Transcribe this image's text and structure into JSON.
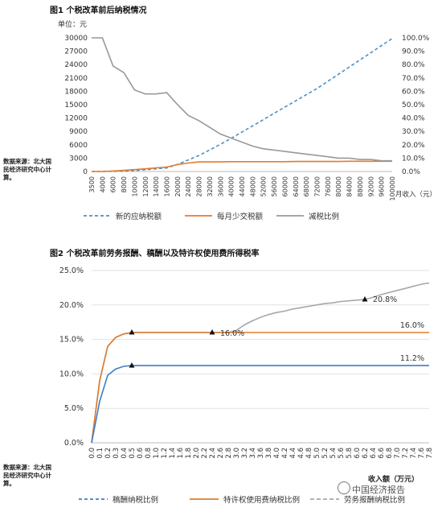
{
  "fig1": {
    "title": "图1 个税改革前后纳税情况",
    "unit": "单位：元",
    "source": "数据来源：北大国民经济研究中心计算。",
    "xlabel": "月收入（元）",
    "xticks": [
      "3500",
      "4000",
      "6000",
      "8000",
      "10000",
      "12000",
      "14000",
      "16000",
      "20000",
      "24000",
      "28000",
      "32000",
      "36000",
      "40000",
      "44000",
      "48000",
      "52000",
      "56000",
      "60000",
      "64000",
      "68000",
      "72000",
      "76000",
      "80000",
      "84000",
      "88000",
      "92000",
      "96000",
      "100000"
    ],
    "yticks_left": [
      "0",
      "3000",
      "6000",
      "9000",
      "12000",
      "15000",
      "18000",
      "21000",
      "24000",
      "27000",
      "30000"
    ],
    "yticks_right": [
      "0.0%",
      "10.0%",
      "20.0%",
      "30.0%",
      "40.0%",
      "50.0%",
      "60.0%",
      "70.0%",
      "80.0%",
      "90.0%",
      "100.0%"
    ],
    "legend": [
      "新的应纳税额",
      "每月少交税额",
      "减税比例"
    ]
  },
  "fig2": {
    "title": "图2 个税改革前劳务报酬、稿酬以及特许权使用费所得税率",
    "source": "数据来源：北大国民经济研究中心计算。",
    "xlabel": "收入额（万元）",
    "yticks": [
      "0.0%",
      "5.0%",
      "10.0%",
      "15.0%",
      "20.0%",
      "25.0%"
    ],
    "legend": [
      "稿酬纳税比例",
      "特许权使用费纳税比例",
      "劳务报酬纳税比例"
    ],
    "annotations": [
      "16.0%",
      "11.2%",
      "16.0%",
      "20.8%"
    ]
  },
  "watermark": "中国经济报告",
  "chart_data": [
    {
      "type": "line",
      "title": "图1 个税改革前后纳税情况",
      "xlabel": "月收入（元）",
      "ylabel": "单位：元",
      "ylim": [
        0,
        30000
      ],
      "y2lim": [
        0,
        1.0
      ],
      "categories": [
        3500,
        4000,
        6000,
        8000,
        10000,
        12000,
        14000,
        16000,
        20000,
        24000,
        28000,
        32000,
        36000,
        40000,
        44000,
        48000,
        52000,
        56000,
        60000,
        64000,
        68000,
        72000,
        76000,
        80000,
        84000,
        88000,
        92000,
        96000,
        100000
      ],
      "series": [
        {
          "name": "新的应纳税额",
          "axis": "left",
          "color": "#4a90c8",
          "dash": true,
          "values": [
            0,
            0,
            30,
            90,
            190,
            390,
            590,
            790,
            1590,
            2590,
            3590,
            4840,
            6090,
            7440,
            8840,
            10240,
            11640,
            13040,
            14440,
            15840,
            17240,
            18640,
            20240,
            21840,
            23440,
            25040,
            26640,
            28240,
            29840
          ]
        },
        {
          "name": "每月少交税额",
          "axis": "left",
          "color": "#e57a2e",
          "dash": false,
          "values": [
            0,
            15,
            115,
            255,
            415,
            590,
            790,
            1000,
            1550,
            1900,
            2150,
            2150,
            2150,
            2200,
            2200,
            2200,
            2200,
            2200,
            2200,
            2250,
            2250,
            2250,
            2250,
            2250,
            2300,
            2300,
            2300,
            2300,
            2300
          ]
        },
        {
          "name": "减税比例",
          "axis": "right",
          "color": "#999999",
          "dash": false,
          "values": [
            1.0,
            1.0,
            0.79,
            0.74,
            0.61,
            0.58,
            0.58,
            0.59,
            0.5,
            0.42,
            0.38,
            0.33,
            0.28,
            0.25,
            0.22,
            0.19,
            0.17,
            0.16,
            0.15,
            0.14,
            0.13,
            0.12,
            0.11,
            0.1,
            0.1,
            0.09,
            0.09,
            0.08,
            0.08
          ]
        }
      ]
    },
    {
      "type": "line",
      "title": "图2 个税改革前劳务报酬、稿酬以及特许权使用费所得税率",
      "xlabel": "收入额（万元）",
      "ylim": [
        0,
        0.25
      ],
      "categories": [
        0.0,
        0.1,
        0.2,
        0.3,
        0.4,
        0.5,
        0.6,
        0.8,
        1.0,
        1.2,
        1.4,
        1.6,
        1.8,
        2.0,
        2.2,
        2.4,
        2.6,
        2.8,
        3.0,
        3.2,
        3.4,
        3.6,
        3.8,
        4.0,
        4.2,
        4.4,
        4.6,
        4.8,
        5.0,
        5.2,
        5.4,
        5.6,
        5.8,
        6.0,
        6.2,
        6.4,
        6.6,
        6.8,
        7.0,
        7.2,
        7.4,
        7.6,
        7.8
      ],
      "xtick_labels": [
        "0.0",
        "0.1",
        "0.2",
        "0.3",
        "0.4",
        "0.5",
        "0.6",
        "0.8",
        "1.0",
        "1.2",
        "1.4",
        "1.6",
        "1.8",
        "2.0",
        "2.2",
        "2.4",
        "2.6",
        "2.8",
        "3.0",
        "3.2",
        "3.4",
        "3.6",
        "3.8",
        "4.0",
        "4.2",
        "4.4",
        "4.6",
        "4.8",
        "5.0",
        "5.2",
        "5.4",
        "5.6",
        "5.8",
        "6.0",
        "6.2",
        "6.4",
        "6.6",
        "6.8",
        "7.0",
        "7.2",
        "7.4",
        "7.6",
        "7.8"
      ],
      "series": [
        {
          "name": "稿酬纳税比例",
          "color": "#3f7fc4",
          "dash": false,
          "values": [
            0.0,
            0.06,
            0.098,
            0.107,
            0.111,
            0.112,
            0.112,
            0.112,
            0.112,
            0.112,
            0.112,
            0.112,
            0.112,
            0.112,
            0.112,
            0.112,
            0.112,
            0.112,
            0.112,
            0.112,
            0.112,
            0.112,
            0.112,
            0.112,
            0.112,
            0.112,
            0.112,
            0.112,
            0.112,
            0.112,
            0.112,
            0.112,
            0.112,
            0.112,
            0.112,
            0.112,
            0.112,
            0.112,
            0.112,
            0.112,
            0.112,
            0.112,
            0.112
          ]
        },
        {
          "name": "特许权使用费纳税比例",
          "color": "#e07b2a",
          "dash": false,
          "values": [
            0.0,
            0.09,
            0.14,
            0.153,
            0.158,
            0.16,
            0.16,
            0.16,
            0.16,
            0.16,
            0.16,
            0.16,
            0.16,
            0.16,
            0.16,
            0.16,
            0.16,
            0.16,
            0.16,
            0.16,
            0.16,
            0.16,
            0.16,
            0.16,
            0.16,
            0.16,
            0.16,
            0.16,
            0.16,
            0.16,
            0.16,
            0.16,
            0.16,
            0.16,
            0.16,
            0.16,
            0.16,
            0.16,
            0.16,
            0.16,
            0.16,
            0.16,
            0.16
          ]
        },
        {
          "name": "劳务报酬纳税比例",
          "color": "#a8a8a8",
          "dash": false,
          "values": [
            0.0,
            0.09,
            0.14,
            0.153,
            0.158,
            0.16,
            0.16,
            0.16,
            0.16,
            0.16,
            0.16,
            0.16,
            0.16,
            0.16,
            0.16,
            0.16,
            0.16,
            0.16,
            0.163,
            0.171,
            0.177,
            0.182,
            0.186,
            0.189,
            0.191,
            0.194,
            0.196,
            0.198,
            0.2,
            0.202,
            0.203,
            0.205,
            0.206,
            0.207,
            0.208,
            0.211,
            0.215,
            0.218,
            0.221,
            0.224,
            0.227,
            0.23,
            0.232
          ]
        }
      ],
      "markers": [
        {
          "series": 1,
          "index": 5,
          "label": "16.0%"
        },
        {
          "series": 0,
          "index": 5,
          "label": "11.2%"
        },
        {
          "series": 2,
          "index": 15,
          "label": "16.0%"
        },
        {
          "series": 2,
          "index": 34,
          "label": "20.8%"
        }
      ]
    }
  ]
}
